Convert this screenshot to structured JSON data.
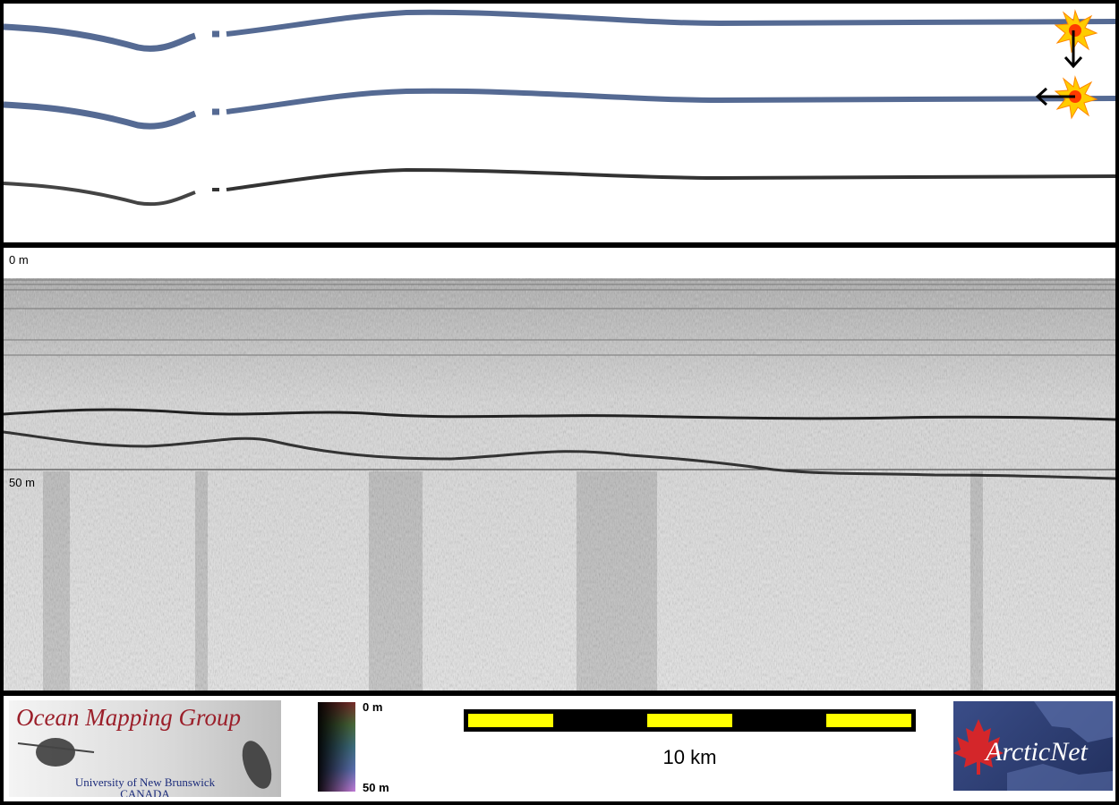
{
  "echogram": {
    "depth_top_label": "0 m",
    "depth_mid_label": "50 m"
  },
  "footer": {
    "omg_logo": {
      "title": "Ocean Mapping Group",
      "line1": "University of New Brunswick",
      "line2": "CANADA"
    },
    "colorbar": {
      "top_label": "0 m",
      "bottom_label": "50 m"
    },
    "scale": {
      "label": "10 km"
    },
    "arcticnet_logo": {
      "text": "ArcticNet"
    }
  },
  "colors": {
    "background": "#000000",
    "track_blue": "#556a93",
    "track_gray": "#444444",
    "scale_yellow": "#ffff00",
    "omg_red": "#9b1f2a",
    "omg_blue": "#1b2b7a",
    "arcticnet_bg": "#2b3a6e",
    "maple_leaf": "#d4262a",
    "marker": "#ffcc00"
  },
  "icons": [
    "starburst-marker-icon",
    "arrow-down-icon",
    "arrow-left-icon",
    "maple-leaf-icon"
  ]
}
